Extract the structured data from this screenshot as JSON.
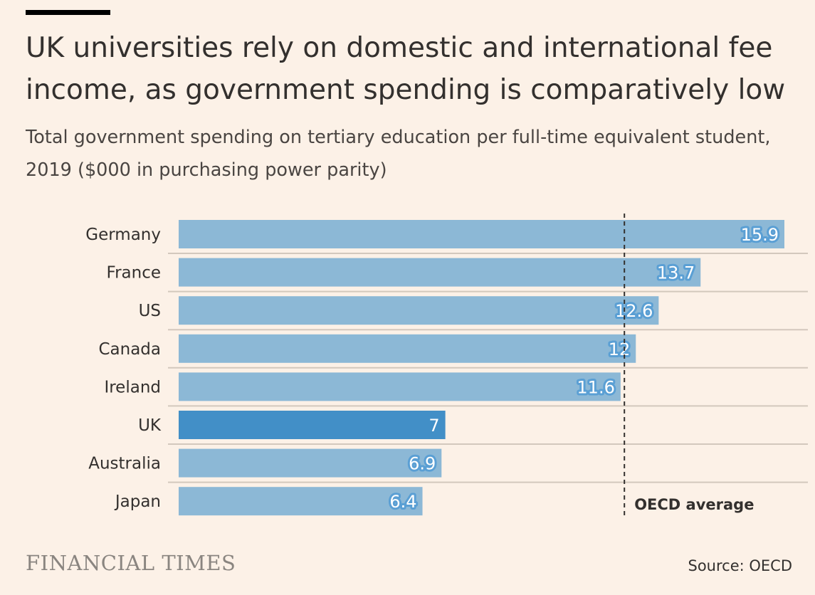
{
  "title": "UK universities rely on domestic and international fee income, as government spending is comparatively low",
  "subtitle": "Total government spending on tertiary education per full-time equivalent student, 2019 ($000 in purchasing power parity)",
  "footer": {
    "logo": "FINANCIAL TIMES",
    "source": "Source: OECD"
  },
  "colors": {
    "background": "#fcf1e7",
    "bar": "#8cb8d6",
    "highlight": "#428fc7",
    "label_halo": "#5a9fd4"
  },
  "chart_data": {
    "type": "bar",
    "orientation": "horizontal",
    "categories": [
      "Germany",
      "France",
      "US",
      "Canada",
      "Ireland",
      "UK",
      "Australia",
      "Japan"
    ],
    "values": [
      15.9,
      13.7,
      12.6,
      12,
      11.6,
      7,
      6.9,
      6.4
    ],
    "value_labels": [
      "15.9",
      "13.7",
      "12.6",
      "12",
      "11.6",
      "7",
      "6.9",
      "6.4"
    ],
    "highlight": "UK",
    "xlim": [
      0,
      15.9
    ],
    "reference_line": {
      "label": "OECD average",
      "value": 11.7
    },
    "grid": false
  }
}
